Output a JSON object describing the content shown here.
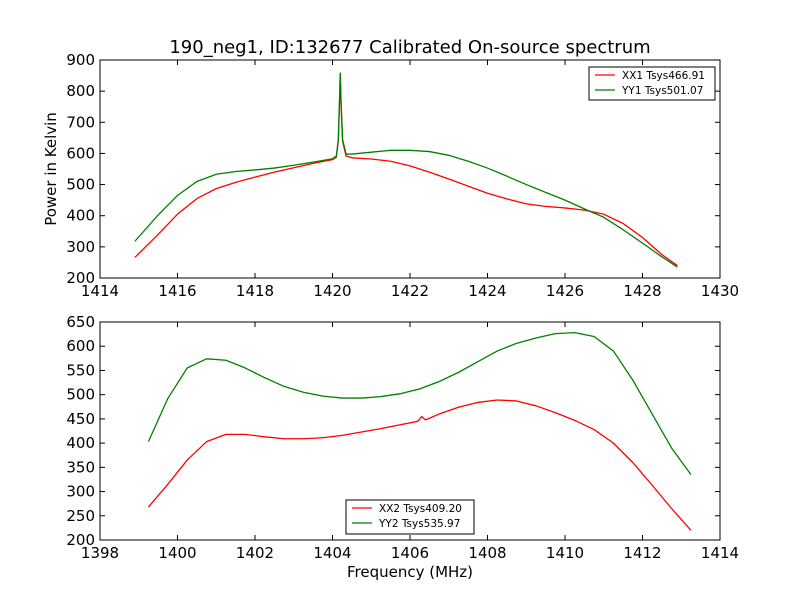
{
  "chart_data": [
    {
      "type": "line",
      "title": "190_neg1, ID:132677 Calibrated On-source spectrum",
      "xlabel": "",
      "ylabel": "Power in Kelvin",
      "xlim": [
        1414,
        1430
      ],
      "ylim": [
        200,
        900
      ],
      "xticks": [
        1414,
        1416,
        1418,
        1420,
        1422,
        1424,
        1426,
        1428,
        1430
      ],
      "yticks": [
        200,
        300,
        400,
        500,
        600,
        700,
        800,
        900
      ],
      "grid": false,
      "legend": "top-right",
      "series": [
        {
          "name": "XX1 Tsys466.91",
          "color": "#ff0000",
          "x": [
            1414.9,
            1415.5,
            1416.0,
            1416.5,
            1417.0,
            1417.5,
            1418.0,
            1418.5,
            1419.0,
            1419.5,
            1420.0,
            1420.1,
            1420.15,
            1420.18,
            1420.2,
            1420.22,
            1420.26,
            1420.35,
            1420.5,
            1421.0,
            1421.5,
            1422.0,
            1422.5,
            1423.0,
            1423.5,
            1424.0,
            1424.5,
            1425.0,
            1425.5,
            1426.0,
            1426.5,
            1427.0,
            1427.5,
            1428.0,
            1428.5,
            1428.9
          ],
          "values": [
            266,
            340,
            405,
            455,
            487,
            507,
            524,
            540,
            554,
            568,
            580,
            588,
            640,
            760,
            855,
            760,
            640,
            592,
            586,
            582,
            575,
            560,
            540,
            518,
            495,
            472,
            454,
            438,
            430,
            425,
            418,
            405,
            375,
            330,
            275,
            240
          ]
        },
        {
          "name": "YY1 Tsys501.07",
          "color": "#008000",
          "x": [
            1414.9,
            1415.5,
            1416.0,
            1416.5,
            1417.0,
            1417.5,
            1418.0,
            1418.5,
            1419.0,
            1419.5,
            1420.0,
            1420.1,
            1420.15,
            1420.18,
            1420.2,
            1420.22,
            1420.26,
            1420.35,
            1420.5,
            1421.0,
            1421.5,
            1422.0,
            1422.5,
            1423.0,
            1423.5,
            1424.0,
            1424.5,
            1425.0,
            1425.5,
            1426.0,
            1426.5,
            1427.0,
            1427.5,
            1428.0,
            1428.5,
            1428.9
          ],
          "values": [
            318,
            402,
            465,
            510,
            533,
            542,
            547,
            553,
            562,
            572,
            583,
            592,
            645,
            770,
            858,
            770,
            645,
            598,
            598,
            604,
            610,
            610,
            606,
            594,
            575,
            553,
            527,
            500,
            475,
            450,
            422,
            395,
            355,
            312,
            268,
            235
          ]
        }
      ]
    },
    {
      "type": "line",
      "title": "",
      "xlabel": "Frequency (MHz)",
      "ylabel": "",
      "xlim": [
        1398,
        1414
      ],
      "ylim": [
        200,
        650
      ],
      "xticks": [
        1398,
        1400,
        1402,
        1404,
        1406,
        1408,
        1410,
        1412,
        1414
      ],
      "yticks": [
        200,
        250,
        300,
        350,
        400,
        450,
        500,
        550,
        600,
        650
      ],
      "grid": false,
      "legend": "bottom-center",
      "series": [
        {
          "name": "XX2 Tsys409.20",
          "color": "#ff0000",
          "x": [
            1399.25,
            1399.75,
            1400.25,
            1400.75,
            1401.25,
            1401.75,
            1402.25,
            1402.75,
            1403.25,
            1403.75,
            1404.25,
            1404.75,
            1405.25,
            1405.75,
            1406.2,
            1406.3,
            1406.4,
            1406.75,
            1407.25,
            1407.75,
            1408.25,
            1408.75,
            1409.25,
            1409.75,
            1410.25,
            1410.75,
            1411.25,
            1411.75,
            1412.25,
            1412.75,
            1413.25
          ],
          "values": [
            268,
            315,
            365,
            403,
            418,
            418,
            413,
            409,
            409,
            411,
            416,
            423,
            430,
            438,
            445,
            455,
            448,
            460,
            474,
            484,
            489,
            487,
            477,
            463,
            447,
            428,
            400,
            360,
            313,
            265,
            220
          ]
        },
        {
          "name": "YY2 Tsys535.97",
          "color": "#008000",
          "x": [
            1399.25,
            1399.75,
            1400.25,
            1400.75,
            1401.25,
            1401.75,
            1402.25,
            1402.75,
            1403.25,
            1403.75,
            1404.25,
            1404.75,
            1405.25,
            1405.75,
            1406.25,
            1406.75,
            1407.25,
            1407.75,
            1408.25,
            1408.75,
            1409.25,
            1409.75,
            1410.25,
            1410.75,
            1411.25,
            1411.75,
            1412.25,
            1412.75,
            1413.25
          ],
          "values": [
            403,
            492,
            555,
            574,
            571,
            555,
            535,
            517,
            505,
            497,
            493,
            493,
            496,
            502,
            512,
            527,
            546,
            568,
            590,
            606,
            617,
            626,
            628,
            620,
            590,
            530,
            460,
            390,
            335
          ]
        }
      ]
    }
  ]
}
